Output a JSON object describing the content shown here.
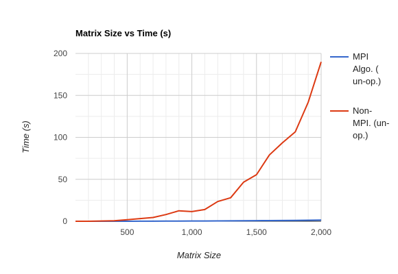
{
  "chart_data": {
    "type": "line",
    "title": "Matrix Size vs Time (s)",
    "xlabel": "Matrix Size",
    "ylabel": "Time (s)",
    "xlim": [
      100,
      2000
    ],
    "ylim": [
      0,
      200
    ],
    "x_ticks": [
      500,
      1000,
      1500,
      2000
    ],
    "x_tick_labels": [
      "500",
      "1,000",
      "1,500",
      "2,000"
    ],
    "y_ticks": [
      0,
      50,
      100,
      150,
      200
    ],
    "y_tick_labels": [
      "0",
      "50",
      "100",
      "150",
      "200"
    ],
    "grid": true,
    "legend_position": "right",
    "x": [
      100,
      200,
      300,
      400,
      500,
      600,
      700,
      800,
      900,
      1000,
      1100,
      1200,
      1300,
      1400,
      1500,
      1600,
      1700,
      1800,
      1900,
      2000
    ],
    "series": [
      {
        "name": "MPI Algo. ( un-op.)",
        "legend_lines": [
          "MPI",
          "Algo. (",
          "un-op.)"
        ],
        "color": "#3366cc",
        "values": [
          0,
          0,
          0,
          0,
          0,
          0.1,
          0.1,
          0.2,
          0.2,
          0.3,
          0.3,
          0.4,
          0.5,
          0.6,
          0.7,
          0.8,
          0.9,
          1.0,
          1.2,
          1.5
        ]
      },
      {
        "name": "Non-MPI. (un-op.)",
        "legend_lines": [
          "Non-",
          "MPI. (un-",
          "op.)"
        ],
        "color": "#dc3912",
        "values": [
          0,
          0,
          0.3,
          0.6,
          1.8,
          3.2,
          4.5,
          8,
          12.5,
          11.5,
          14,
          23.5,
          28,
          46.5,
          55.5,
          79,
          93.5,
          106.5,
          142,
          190
        ]
      }
    ]
  }
}
